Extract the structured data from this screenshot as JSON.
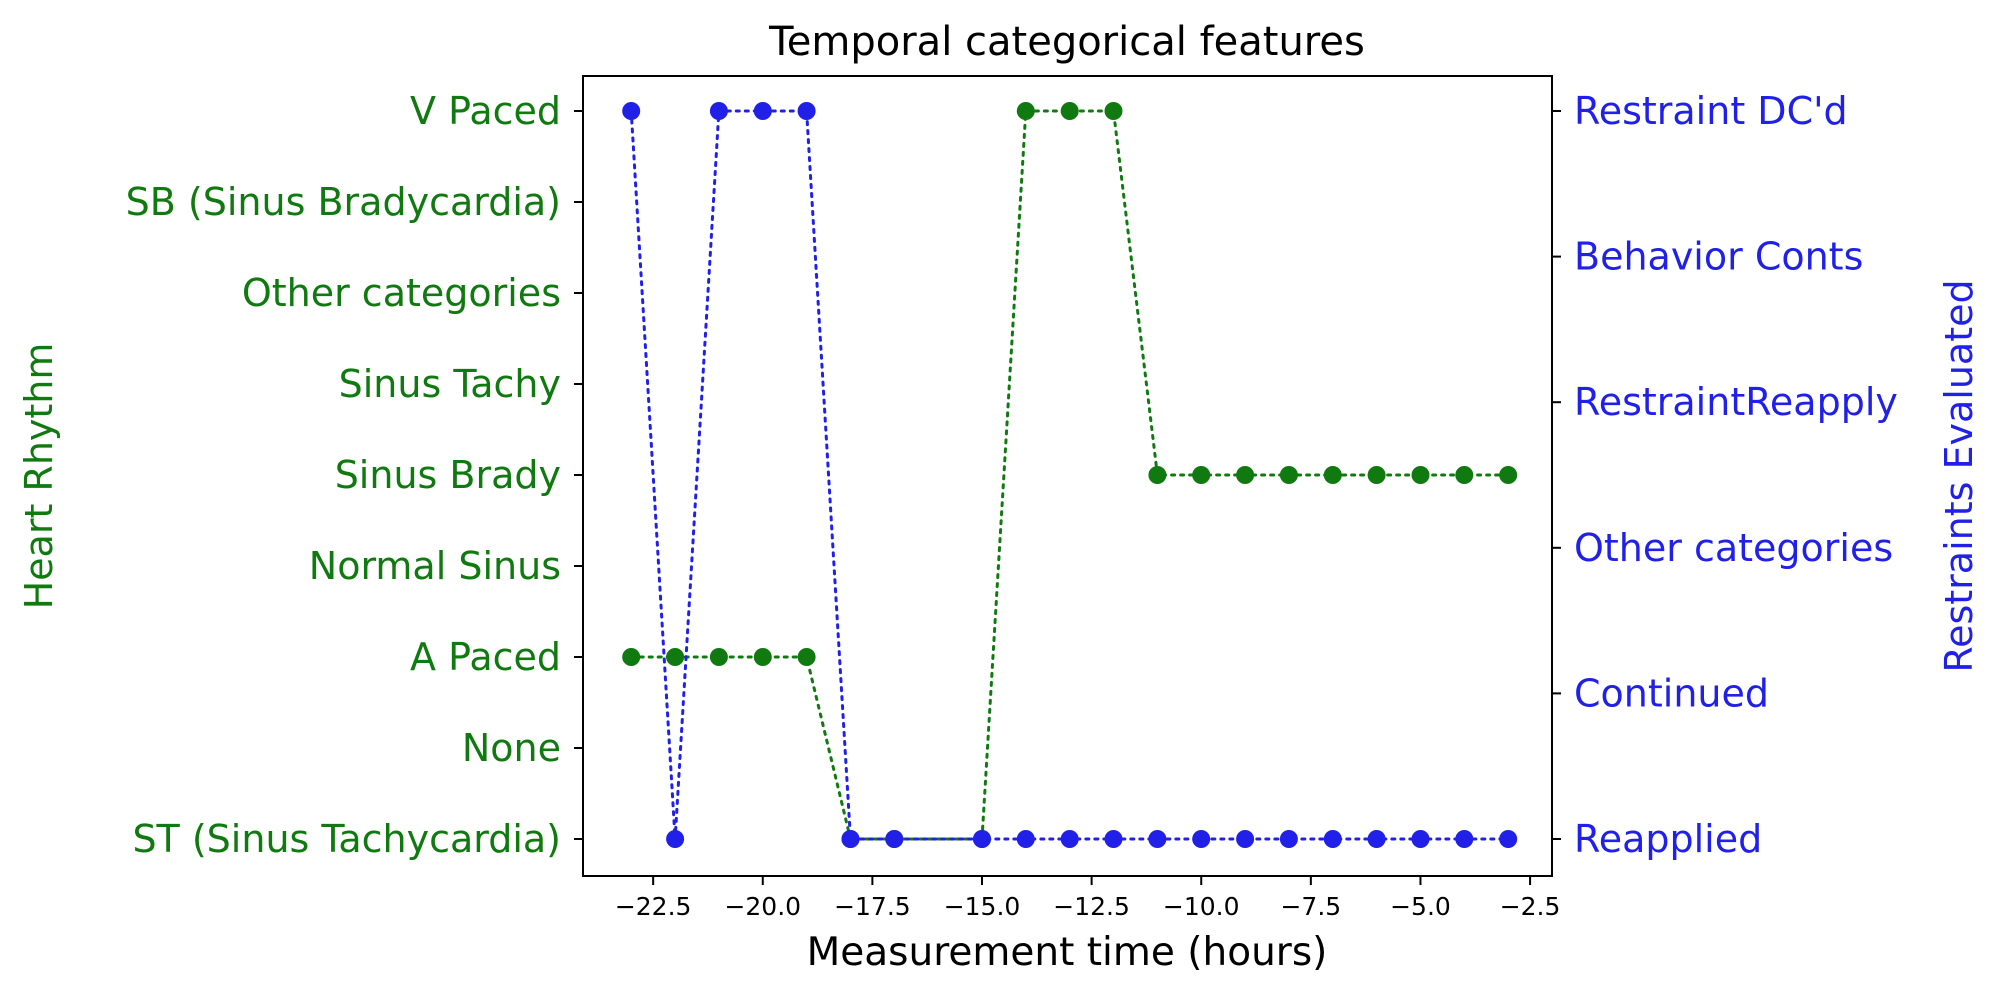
{
  "chart_data": {
    "type": "line",
    "title": "Temporal categorical features",
    "xlabel": "Measurement time (hours)",
    "xlim": [
      -24.1,
      -2.0
    ],
    "xticks": [
      -22.5,
      -20.0,
      -17.5,
      -15.0,
      -12.5,
      -10.0,
      -7.5,
      -5.0,
      -2.5
    ],
    "xtick_labels": [
      "−22.5",
      "−20.0",
      "−17.5",
      "−15.0",
      "−12.5",
      "−10.0",
      "−7.5",
      "−5.0",
      "−2.5"
    ],
    "grid": false,
    "left_axis": {
      "label": "Heart Rhythm",
      "color": "#107a10",
      "categories": [
        "ST (Sinus Tachycardia)",
        "None",
        "A Paced",
        "Normal Sinus",
        "Sinus Brady",
        "Sinus Tachy",
        "Other categories",
        "SB (Sinus Bradycardia)",
        "V Paced"
      ]
    },
    "right_axis": {
      "label": "Restraints Evaluated",
      "color": "#2020e8",
      "categories": [
        "Reapplied",
        "Continued",
        "Other categories",
        "RestraintReapply",
        "Behavior Conts",
        "Restraint DC'd"
      ]
    },
    "series": [
      {
        "axis": "left",
        "color": "#107a10",
        "x": [
          -23,
          -22,
          -21,
          -20,
          -19,
          -18,
          -17,
          -15,
          -14,
          -13,
          -12,
          -11,
          -10,
          -9,
          -8,
          -7,
          -6,
          -5,
          -4,
          -3
        ],
        "y": [
          "A Paced",
          "A Paced",
          "A Paced",
          "A Paced",
          "A Paced",
          "ST (Sinus Tachycardia)",
          "ST (Sinus Tachycardia)",
          "ST (Sinus Tachycardia)",
          "V Paced",
          "V Paced",
          "V Paced",
          "Sinus Brady",
          "Sinus Brady",
          "Sinus Brady",
          "Sinus Brady",
          "Sinus Brady",
          "Sinus Brady",
          "Sinus Brady",
          "Sinus Brady",
          "Sinus Brady"
        ]
      },
      {
        "axis": "right",
        "color": "#2020e8",
        "x": [
          -23,
          -22,
          -21,
          -20,
          -19,
          -18,
          -17,
          -15,
          -14,
          -13,
          -12,
          -11,
          -10,
          -9,
          -8,
          -7,
          -6,
          -5,
          -4,
          -3
        ],
        "y": [
          "Restraint DC'd",
          "Reapplied",
          "Restraint DC'd",
          "Restraint DC'd",
          "Restraint DC'd",
          "Reapplied",
          "Reapplied",
          "Reapplied",
          "Reapplied",
          "Reapplied",
          "Reapplied",
          "Reapplied",
          "Reapplied",
          "Reapplied",
          "Reapplied",
          "Reapplied",
          "Reapplied",
          "Reapplied",
          "Reapplied",
          "Reapplied"
        ]
      }
    ]
  }
}
